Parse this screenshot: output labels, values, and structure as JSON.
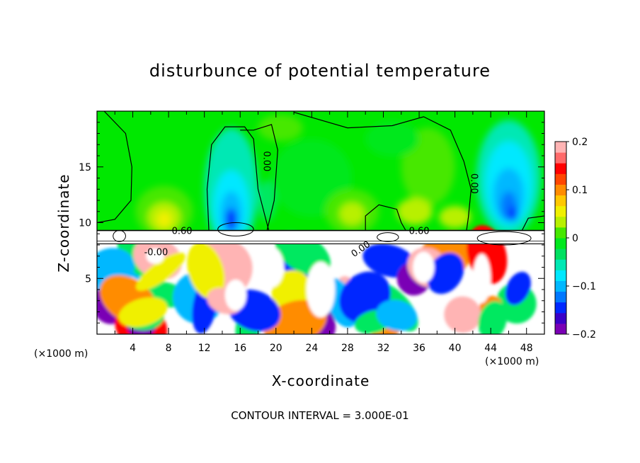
{
  "chart_data": {
    "type": "heatmap",
    "title": "disturbunce of potential temperature",
    "xlabel": "X-coordinate",
    "ylabel": "Z-coordinate",
    "x_unit_label_left": "(×1000 m)",
    "x_unit_label_right": "(×1000 m)",
    "x_ticks": [
      4,
      8,
      12,
      16,
      20,
      24,
      28,
      32,
      36,
      40,
      44,
      48
    ],
    "y_ticks": [
      5,
      10,
      15
    ],
    "xlim": [
      0,
      50
    ],
    "ylim": [
      0,
      20
    ],
    "colorbar": {
      "ticks": [
        {
          "value": 0.2,
          "label": "0.2"
        },
        {
          "value": 0.1,
          "label": "0.1"
        },
        {
          "value": 0,
          "label": "0"
        },
        {
          "value": -0.1,
          "label": "−0.1"
        },
        {
          "value": -0.2,
          "label": "−0.2"
        }
      ],
      "range": [
        -0.2,
        0.2
      ],
      "colors": [
        "#7a00b5",
        "#3a00c8",
        "#0028ff",
        "#0078ff",
        "#00b8ff",
        "#00e8ff",
        "#00e8b4",
        "#00e060",
        "#00e81e",
        "#46e800",
        "#b8f000",
        "#f0f000",
        "#ffc800",
        "#ff8c00",
        "#ff4600",
        "#ff0000",
        "#ff6a6a",
        "#ffb4b4"
      ]
    },
    "contour_labels": [
      {
        "text": "0.60",
        "x": 9.5,
        "z": 9.2,
        "rotate": 0
      },
      {
        "text": "0.60",
        "x": 36.0,
        "z": 9.2,
        "rotate": 0
      },
      {
        "text": "0.00",
        "x": 18.9,
        "z": 15.5,
        "rotate": 90
      },
      {
        "text": "0.00",
        "x": 42.1,
        "z": 13.5,
        "rotate": 90
      },
      {
        "text": "-0.00",
        "x": 6.6,
        "z": 7.3,
        "rotate": 0
      },
      {
        "text": "0.00",
        "x": 29.5,
        "z": 7.6,
        "rotate": -35
      }
    ],
    "footer": "CONTOUR INTERVAL = 3.000E-01"
  }
}
